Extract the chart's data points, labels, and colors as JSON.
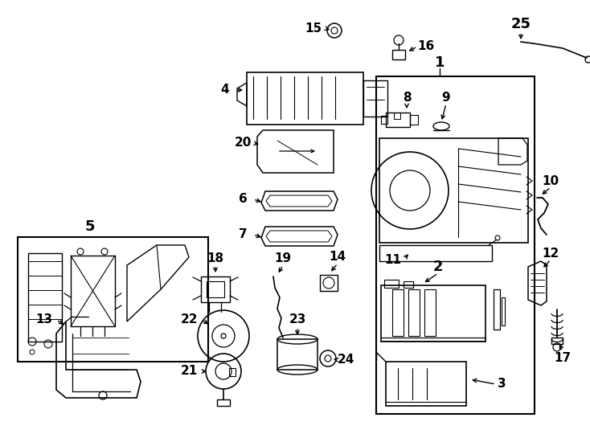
{
  "bg_color": "#ffffff",
  "line_color": "#000000",
  "figsize": [
    7.34,
    5.4
  ],
  "dpi": 100
}
